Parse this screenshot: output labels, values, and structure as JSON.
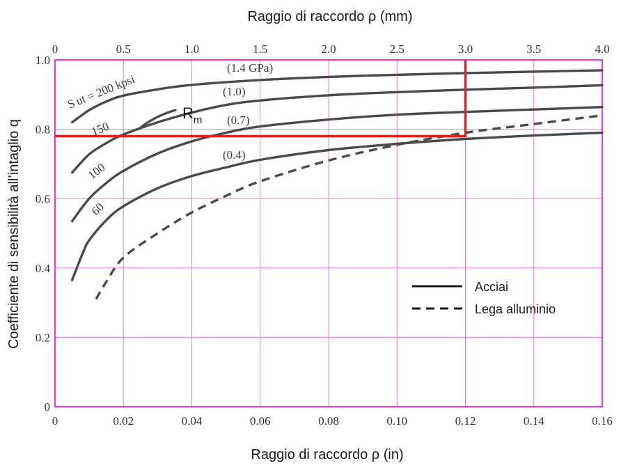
{
  "chart_data": {
    "type": "line",
    "xlabel_top": "Raggio di raccordo ρ  (mm)",
    "xlabel_bottom": "Raggio di raccordo ρ  (in)",
    "ylabel": "Coefficiente di sensibilità all’intaglio q",
    "xlim": [
      0,
      0.16
    ],
    "ylim": [
      0,
      1.0
    ],
    "x_ticks": [
      "0",
      "0.02",
      "0.04",
      "0.06",
      "0.08",
      "0.10",
      "0.12",
      "0.14",
      "0.16"
    ],
    "y_ticks": [
      "0",
      "0.2",
      "0.4",
      "0.6",
      "0.8",
      "1.0"
    ],
    "x_top_ticks": [
      "0",
      "0.5",
      "1.0",
      "1.5",
      "2.0",
      "2.5",
      "3.0",
      "3.5",
      "4.0"
    ],
    "x_top_lim_mm": [
      0,
      4.0
    ],
    "grid": true,
    "legend_position": "lower-right",
    "legend": [
      {
        "label": "Acciai",
        "style": "solid"
      },
      {
        "label": "Lega alluminio",
        "style": "dashed"
      }
    ],
    "series": [
      {
        "label_kpsi": "S ut = 200 kpsi",
        "label_gpa": "(1.4 GPa)",
        "style": "solid",
        "x": [
          0.005,
          0.01,
          0.015,
          0.02,
          0.03,
          0.04,
          0.06,
          0.08,
          0.1,
          0.12,
          0.14,
          0.16
        ],
        "y": [
          0.82,
          0.855,
          0.88,
          0.897,
          0.915,
          0.928,
          0.942,
          0.951,
          0.957,
          0.962,
          0.966,
          0.97
        ]
      },
      {
        "label_kpsi": "150",
        "label_gpa": "(1.0)",
        "style": "solid",
        "x": [
          0.005,
          0.01,
          0.015,
          0.02,
          0.03,
          0.04,
          0.05,
          0.06,
          0.08,
          0.1,
          0.12,
          0.14,
          0.16
        ],
        "y": [
          0.675,
          0.728,
          0.76,
          0.785,
          0.82,
          0.848,
          0.87,
          0.883,
          0.898,
          0.907,
          0.914,
          0.92,
          0.927
        ]
      },
      {
        "label_kpsi": "100",
        "label_gpa": "(0.7)",
        "style": "solid",
        "x": [
          0.005,
          0.01,
          0.015,
          0.02,
          0.03,
          0.04,
          0.05,
          0.06,
          0.08,
          0.1,
          0.12,
          0.14,
          0.16
        ],
        "y": [
          0.535,
          0.6,
          0.645,
          0.68,
          0.73,
          0.765,
          0.79,
          0.808,
          0.828,
          0.842,
          0.85,
          0.857,
          0.864
        ]
      },
      {
        "label_kpsi": "60",
        "label_gpa": "(0.4)",
        "style": "solid",
        "x": [
          0.005,
          0.008,
          0.01,
          0.015,
          0.02,
          0.03,
          0.04,
          0.05,
          0.06,
          0.08,
          0.1,
          0.12,
          0.14,
          0.16
        ],
        "y": [
          0.365,
          0.44,
          0.48,
          0.538,
          0.578,
          0.63,
          0.665,
          0.69,
          0.712,
          0.74,
          0.758,
          0.772,
          0.782,
          0.79
        ]
      },
      {
        "label": "Lega alluminio",
        "style": "dashed",
        "x": [
          0.012,
          0.015,
          0.02,
          0.03,
          0.04,
          0.05,
          0.06,
          0.08,
          0.1,
          0.12,
          0.14,
          0.16
        ],
        "y": [
          0.31,
          0.36,
          0.43,
          0.5,
          0.56,
          0.608,
          0.65,
          0.71,
          0.755,
          0.79,
          0.815,
          0.84
        ]
      }
    ],
    "annotation": {
      "label": "R",
      "subscript": "m",
      "color": "#e02020",
      "reading_x_in": 0.12,
      "reading_y": 0.78
    }
  }
}
